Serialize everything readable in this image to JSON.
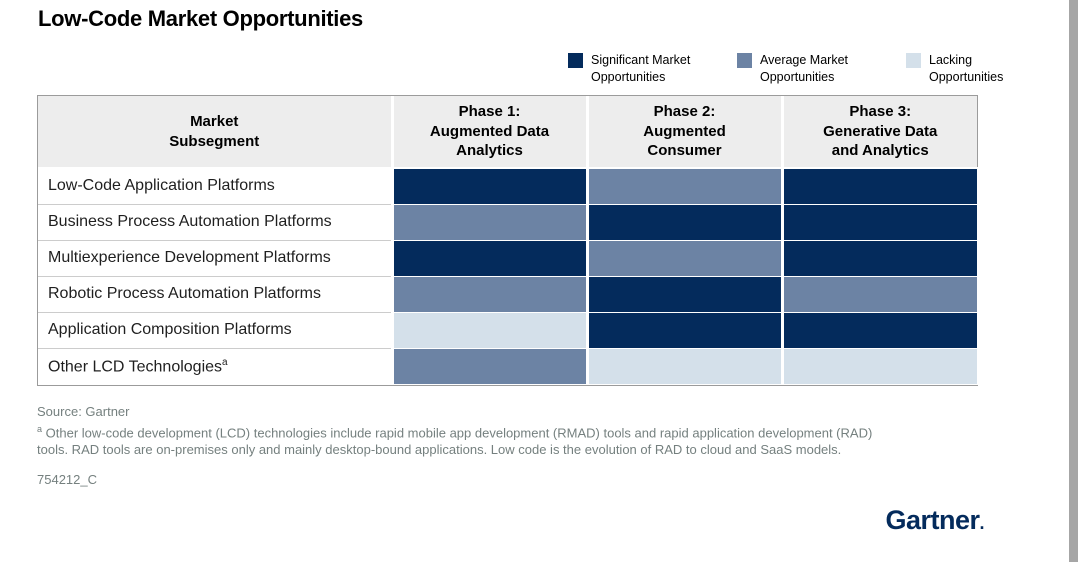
{
  "page": {
    "title": "Low-Code Market Opportunities",
    "source": "Source: Gartner",
    "footnote_marker": "a",
    "footnote_text": "Other low-code development (LCD) technologies include rapid mobile app development (RMAD) tools and rapid application development (RAD)\ntools. RAD tools are on-premises only and mainly desktop-bound applications. Low code is the evolution of RAD to cloud and SaaS models.",
    "note_id": "754212_C",
    "logo_text": "Gartner",
    "logo_dot": "."
  },
  "legend": {
    "items": [
      {
        "key": "significant",
        "label": "Significant Market Opportunities",
        "color": "#042b5c"
      },
      {
        "key": "average",
        "label": "Average Market Opportunities",
        "color": "#6c83a4"
      },
      {
        "key": "lacking",
        "label": "Lacking Opportunities",
        "color": "#d4e0ea"
      }
    ]
  },
  "chart_data": {
    "type": "heatmap",
    "title": "Low-Code Market Opportunities",
    "legend": [
      "Significant Market Opportunities",
      "Average Market Opportunities",
      "Lacking Opportunities"
    ],
    "value_colors": {
      "significant": "#042b5c",
      "average": "#6c83a4",
      "lacking": "#d4e0ea"
    },
    "header": [
      "Market\nSubsegment",
      "Phase 1:\nAugmented Data\nAnalytics",
      "Phase 2:\nAugmented\nConsumer",
      "Phase 3:\nGenerative Data\nand Analytics"
    ],
    "rows": [
      {
        "label": "Low-Code Application Platforms",
        "marker": "",
        "values": [
          "significant",
          "average",
          "significant"
        ]
      },
      {
        "label": "Business Process Automation Platforms",
        "marker": "",
        "values": [
          "average",
          "significant",
          "significant"
        ]
      },
      {
        "label": "Multiexperience Development Platforms",
        "marker": "",
        "values": [
          "significant",
          "average",
          "significant"
        ]
      },
      {
        "label": "Robotic Process Automation Platforms",
        "marker": "",
        "values": [
          "average",
          "significant",
          "average"
        ]
      },
      {
        "label": "Application Composition Platforms",
        "marker": "",
        "values": [
          "lacking",
          "significant",
          "significant"
        ]
      },
      {
        "label": "Other LCD Technologies",
        "marker": "a",
        "values": [
          "average",
          "lacking",
          "lacking"
        ]
      }
    ]
  }
}
